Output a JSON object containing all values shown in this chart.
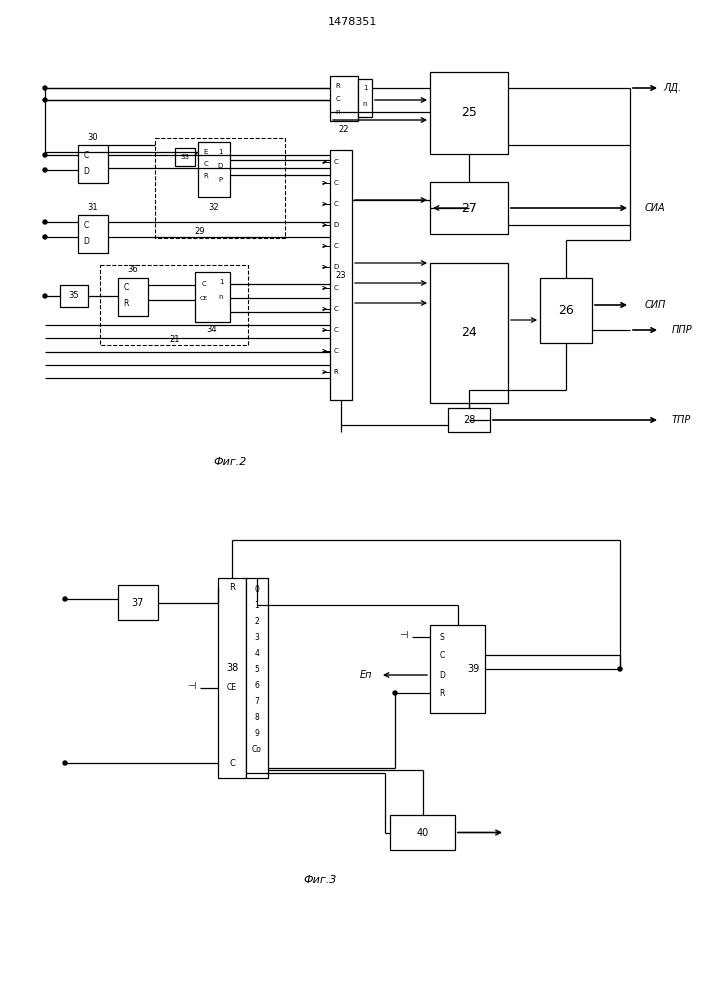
{
  "title": "1478351",
  "fig2_label": "Фиг.2",
  "fig3_label": "Фиг.3",
  "output_labels": {
    "ld": "ЛД.",
    "sia": "СИА",
    "sip": "СИП",
    "ppr": "ППР",
    "tpr": "ТПР"
  }
}
